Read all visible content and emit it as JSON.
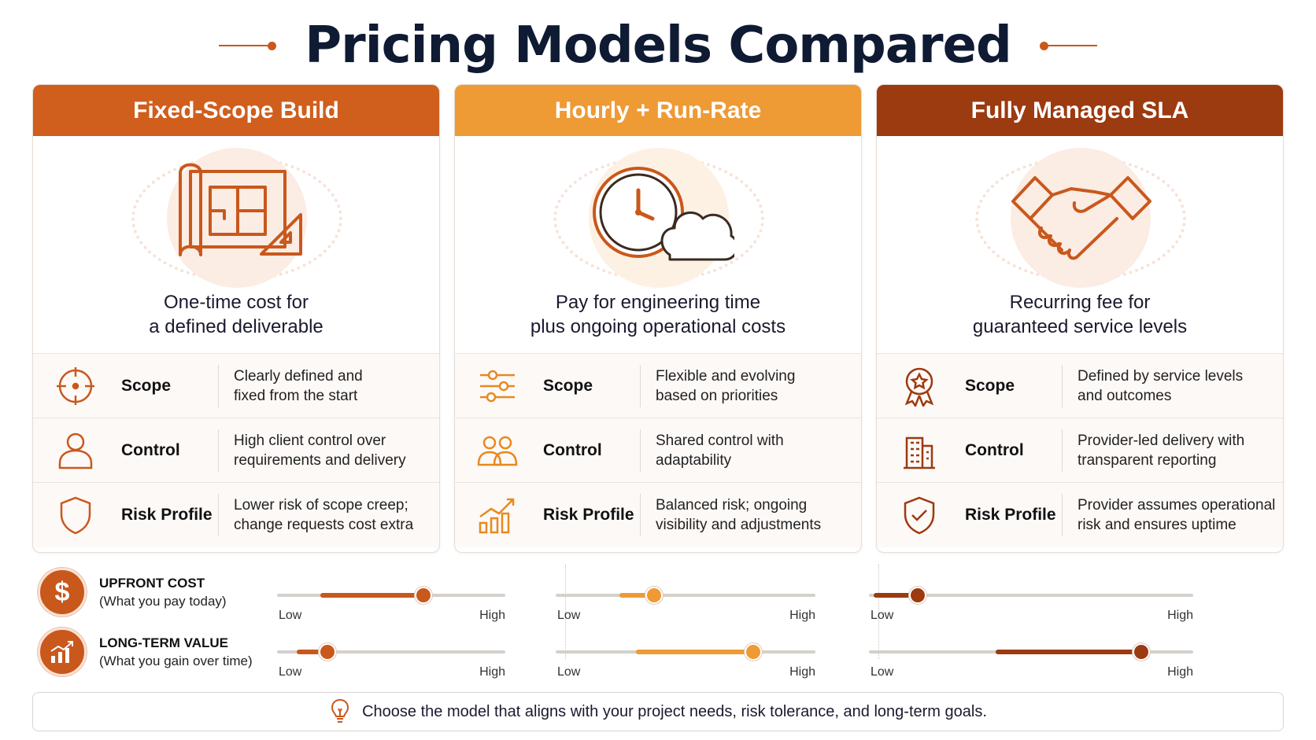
{
  "title": "Pricing Models Compared",
  "colors": {
    "accent": "#c9581c",
    "dark_orange": "#9c3a10",
    "mid_orange": "#ee9a35",
    "light_orange": "#d96a26"
  },
  "row_labels": {
    "scope": "Scope",
    "control": "Control",
    "risk": "Risk Profile"
  },
  "cards": [
    {
      "header": "Fixed-Scope Build",
      "header_color": "#d05e1d",
      "hero_icon": "blueprint-icon",
      "description_line1": "One-time cost for",
      "description_line2": "a defined deliverable",
      "scope_icon": "crosshair-target-icon",
      "scope_line1": "Clearly defined and",
      "scope_line2": "fixed from the start",
      "control_icon": "person-icon",
      "control_line1": "High client control over",
      "control_line2": "requirements and delivery",
      "risk_icon": "shield-icon",
      "risk_line1": "Lower risk of scope creep;",
      "risk_line2": "change requests cost extra"
    },
    {
      "header": "Hourly + Run-Rate",
      "header_color": "#ee9a35",
      "hero_icon": "clock-cloud-icon",
      "description_line1": "Pay for engineering time",
      "description_line2": "plus ongoing operational costs",
      "scope_icon": "sliders-icon",
      "scope_line1": "Flexible and evolving",
      "scope_line2": "based on priorities",
      "control_icon": "people-icon",
      "control_line1": "Shared control with",
      "control_line2": "adaptability",
      "risk_icon": "bar-chart-trend-icon",
      "risk_line1": "Balanced risk; ongoing",
      "risk_line2": "visibility and adjustments"
    },
    {
      "header": "Fully Managed SLA",
      "header_color": "#9c3a10",
      "hero_icon": "handshake-icon",
      "description_line1": "Recurring fee for",
      "description_line2": "guaranteed service levels",
      "scope_icon": "award-badge-icon",
      "scope_line1": "Defined by service levels",
      "scope_line2": "and outcomes",
      "control_icon": "building-icon",
      "control_line1": "Provider-led delivery with",
      "control_line2": "transparent reporting",
      "risk_icon": "shield-check-icon",
      "risk_line1": "Provider assumes operational",
      "risk_line2": "risk and ensures uptime"
    }
  ],
  "metrics": [
    {
      "title": "UPFRONT COST",
      "subtitle": "(What you pay today)",
      "icon": "dollar-icon",
      "glyph": "$"
    },
    {
      "title": "LONG-TERM VALUE",
      "subtitle": "(What you gain over time)",
      "icon": "growth-chart-icon"
    }
  ],
  "slider_labels": {
    "low": "Low",
    "high": "High"
  },
  "sliders": {
    "upfront_cost": [
      0.64,
      0.38,
      0.15
    ],
    "long_term_value": [
      0.22,
      0.76,
      0.84
    ]
  },
  "footer": {
    "icon": "lightbulb-icon",
    "text": "Choose the model that aligns with your project needs, risk tolerance, and long-term goals."
  }
}
